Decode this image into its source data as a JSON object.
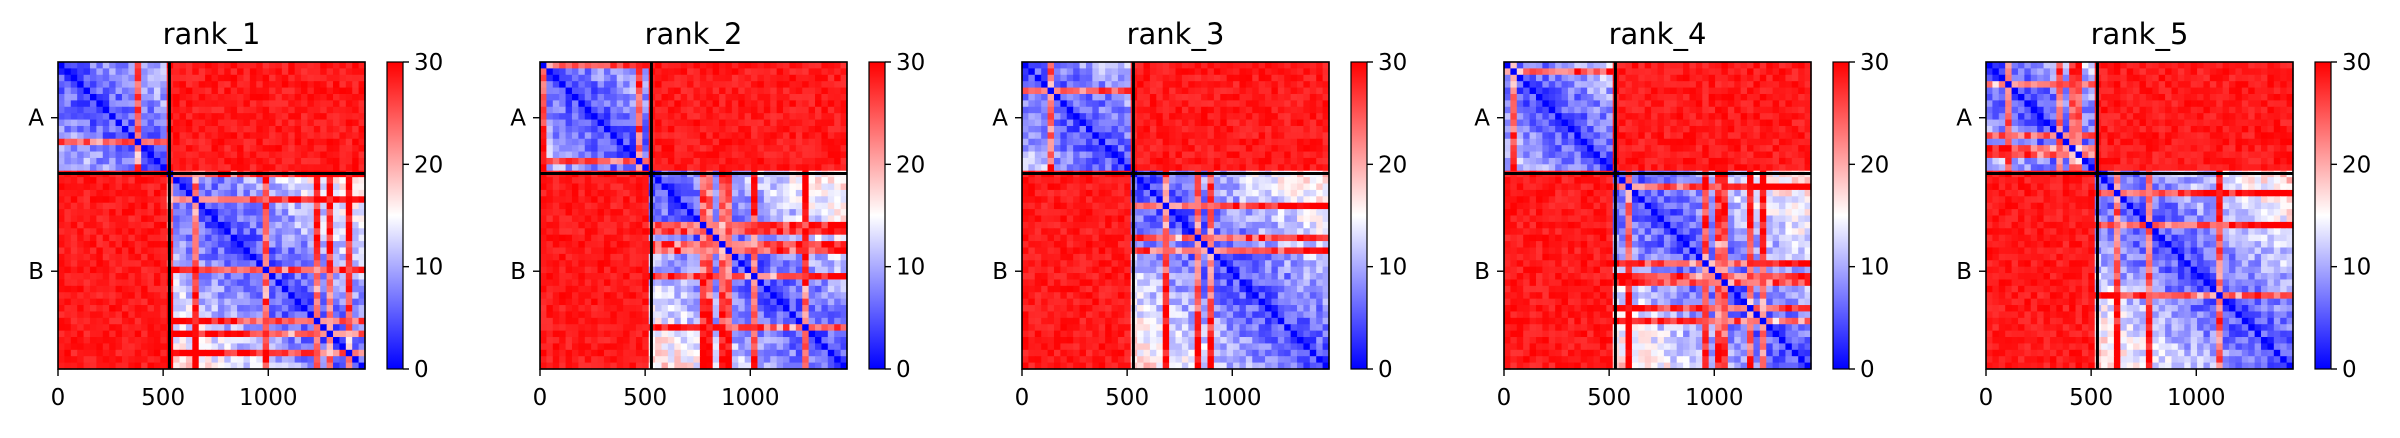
{
  "figure": {
    "colormap": {
      "name": "bwr",
      "low": "#0000ff",
      "mid": "#ffffff",
      "high": "#ff0000"
    },
    "colorbar_ticks": [
      "0",
      "10",
      "20",
      "30"
    ],
    "x_ticks": [
      "0",
      "500",
      "1000"
    ],
    "chain_labels": [
      "A",
      "B"
    ]
  },
  "chart_data": [
    {
      "type": "heatmap",
      "title": "rank_1",
      "xlim": [
        0,
        1460
      ],
      "ylim": [
        1460,
        0
      ],
      "x_ticks": [
        0,
        500,
        1000
      ],
      "chains": [
        {
          "name": "A",
          "start": 0,
          "end": 530
        },
        {
          "name": "B",
          "start": 530,
          "end": 1460
        }
      ],
      "colorbar": {
        "vmin": 0,
        "vmax": 30,
        "ticks": [
          0,
          10,
          20,
          30
        ]
      },
      "intra_chain_error": "low (blue) with red stripes",
      "inter_chain_error": 30
    },
    {
      "type": "heatmap",
      "title": "rank_2",
      "xlim": [
        0,
        1460
      ],
      "ylim": [
        1460,
        0
      ],
      "x_ticks": [
        0,
        500,
        1000
      ],
      "chains": [
        {
          "name": "A",
          "start": 0,
          "end": 530
        },
        {
          "name": "B",
          "start": 530,
          "end": 1460
        }
      ],
      "colorbar": {
        "vmin": 0,
        "vmax": 30,
        "ticks": [
          0,
          10,
          20,
          30
        ]
      },
      "intra_chain_error": "low (blue) with red stripes",
      "inter_chain_error": 30
    },
    {
      "type": "heatmap",
      "title": "rank_3",
      "xlim": [
        0,
        1460
      ],
      "ylim": [
        1460,
        0
      ],
      "x_ticks": [
        0,
        500,
        1000
      ],
      "chains": [
        {
          "name": "A",
          "start": 0,
          "end": 530
        },
        {
          "name": "B",
          "start": 530,
          "end": 1460
        }
      ],
      "colorbar": {
        "vmin": 0,
        "vmax": 30,
        "ticks": [
          0,
          10,
          20,
          30
        ]
      },
      "intra_chain_error": "low (blue) with red stripes",
      "inter_chain_error": 30
    },
    {
      "type": "heatmap",
      "title": "rank_4",
      "xlim": [
        0,
        1460
      ],
      "ylim": [
        1460,
        0
      ],
      "x_ticks": [
        0,
        500,
        1000
      ],
      "chains": [
        {
          "name": "A",
          "start": 0,
          "end": 530
        },
        {
          "name": "B",
          "start": 530,
          "end": 1460
        }
      ],
      "colorbar": {
        "vmin": 0,
        "vmax": 30,
        "ticks": [
          0,
          10,
          20,
          30
        ]
      },
      "intra_chain_error": "low (blue) with red stripes",
      "inter_chain_error": 30
    },
    {
      "type": "heatmap",
      "title": "rank_5",
      "xlim": [
        0,
        1460
      ],
      "ylim": [
        1460,
        0
      ],
      "x_ticks": [
        0,
        500,
        1000
      ],
      "chains": [
        {
          "name": "A",
          "start": 0,
          "end": 530
        },
        {
          "name": "B",
          "start": 530,
          "end": 1460
        }
      ],
      "colorbar": {
        "vmin": 0,
        "vmax": 30,
        "ticks": [
          0,
          10,
          20,
          30
        ]
      },
      "intra_chain_error": "low (blue) with red stripes",
      "inter_chain_error": 30
    }
  ]
}
